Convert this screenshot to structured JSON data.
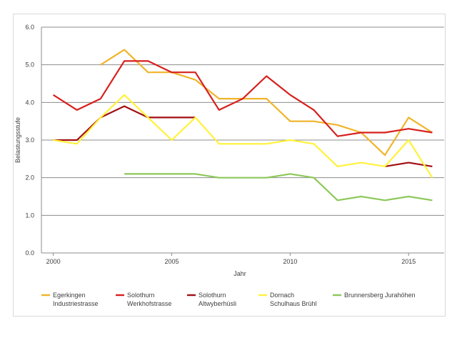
{
  "chart_data": {
    "type": "line",
    "title": "",
    "xlabel": "Jahr",
    "ylabel": "Belastungsstufe",
    "xlim": [
      1999.5,
      2016.5
    ],
    "ylim": [
      0,
      6
    ],
    "x_ticks": [
      2000,
      2005,
      2010,
      2015
    ],
    "y_ticks": [
      "0.0",
      "1.0",
      "2.0",
      "3.0",
      "4.0",
      "5.0",
      "6.0"
    ],
    "grid": "horizontal",
    "legend_position": "bottom",
    "series": [
      {
        "name_lines": [
          "Egerkingen",
          "Industriestrasse"
        ],
        "color": "#F0B429",
        "points": [
          [
            2000,
            3.0
          ],
          [
            2002,
            5.0
          ],
          [
            2003,
            5.4
          ],
          [
            2004,
            4.8
          ],
          [
            2005,
            4.8
          ],
          [
            2006,
            4.6
          ],
          [
            2007,
            4.1
          ],
          [
            2008,
            4.1
          ],
          [
            2009,
            4.1
          ],
          [
            2010,
            3.5
          ],
          [
            2011,
            3.5
          ],
          [
            2012,
            3.4
          ],
          [
            2013,
            3.2
          ],
          [
            2014,
            2.6
          ],
          [
            2015,
            3.6
          ],
          [
            2016,
            3.2
          ]
        ]
      },
      {
        "name_lines": [
          "Solothurn",
          "Werkhofstrasse"
        ],
        "color": "#D6211E",
        "points": [
          [
            2000,
            4.2
          ],
          [
            2001,
            3.8
          ],
          [
            2002,
            4.1
          ],
          [
            2003,
            5.1
          ],
          [
            2004,
            5.1
          ],
          [
            2005,
            4.8
          ],
          [
            2006,
            4.8
          ],
          [
            2007,
            3.8
          ],
          [
            2008,
            4.1
          ],
          [
            2009,
            4.7
          ],
          [
            2010,
            4.2
          ],
          [
            2011,
            3.8
          ],
          [
            2012,
            3.1
          ],
          [
            2013,
            3.2
          ],
          [
            2014,
            3.2
          ],
          [
            2015,
            3.3
          ],
          [
            2016,
            3.2
          ]
        ]
      },
      {
        "name_lines": [
          "Solothurn",
          "Altwyberhüsli"
        ],
        "color": "#A30F12",
        "points": [
          [
            2000,
            3.0
          ],
          [
            2001,
            3.0
          ],
          [
            2002,
            3.6
          ],
          [
            2003,
            3.9
          ],
          [
            2004,
            3.6
          ],
          [
            2005,
            3.6
          ],
          [
            2006,
            3.6
          ],
          [
            2014,
            2.3
          ],
          [
            2015,
            2.4
          ],
          [
            2016,
            2.3
          ]
        ]
      },
      {
        "name_lines": [
          "Dornach",
          "Schulhaus Brühl"
        ],
        "color": "#FFF23A",
        "points": [
          [
            2000,
            3.0
          ],
          [
            2001,
            2.9
          ],
          [
            2002,
            3.6
          ],
          [
            2003,
            4.2
          ],
          [
            2004,
            3.6
          ],
          [
            2005,
            3.0
          ],
          [
            2006,
            3.6
          ],
          [
            2007,
            2.9
          ],
          [
            2008,
            2.9
          ],
          [
            2009,
            2.9
          ],
          [
            2010,
            3.0
          ],
          [
            2011,
            2.9
          ],
          [
            2012,
            2.3
          ],
          [
            2013,
            2.4
          ],
          [
            2014,
            2.3
          ],
          [
            2015,
            3.0
          ],
          [
            2016,
            2.0
          ]
        ]
      },
      {
        "name_lines": [
          "Brunnersberg Jurahöhen"
        ],
        "color": "#8DC859",
        "points": [
          [
            2003,
            2.1
          ],
          [
            2004,
            2.1
          ],
          [
            2005,
            2.1
          ],
          [
            2006,
            2.1
          ],
          [
            2007,
            2.0
          ],
          [
            2008,
            2.0
          ],
          [
            2009,
            2.0
          ],
          [
            2010,
            2.1
          ],
          [
            2011,
            2.0
          ],
          [
            2012,
            1.4
          ],
          [
            2013,
            1.5
          ],
          [
            2014,
            1.4
          ],
          [
            2015,
            1.5
          ],
          [
            2016,
            1.4
          ]
        ]
      }
    ]
  }
}
